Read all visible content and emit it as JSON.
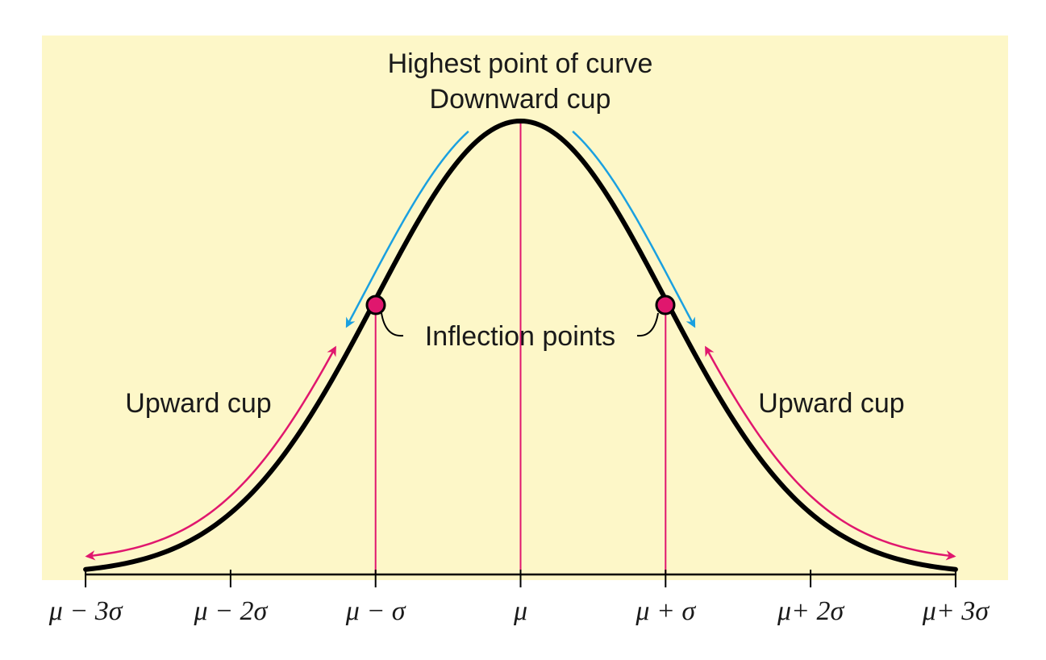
{
  "labels": {
    "title_line1": "Highest point of curve",
    "title_line2": "Downward cup",
    "inflection": "Inflection points",
    "upward_left": "Upward cup",
    "upward_right": "Upward cup"
  },
  "ticks": [
    "μ − 3σ",
    "μ − 2σ",
    "μ − σ",
    "μ",
    "μ + σ",
    "μ+ 2σ",
    "μ+ 3σ"
  ],
  "colors": {
    "background": "#fdf7c8",
    "curve": "#000000",
    "guide_lines": "#e0176e",
    "inflection_fill": "#e0176e",
    "downward_arrow": "#1aa0e0",
    "upward_arrow": "#e0176e"
  }
}
